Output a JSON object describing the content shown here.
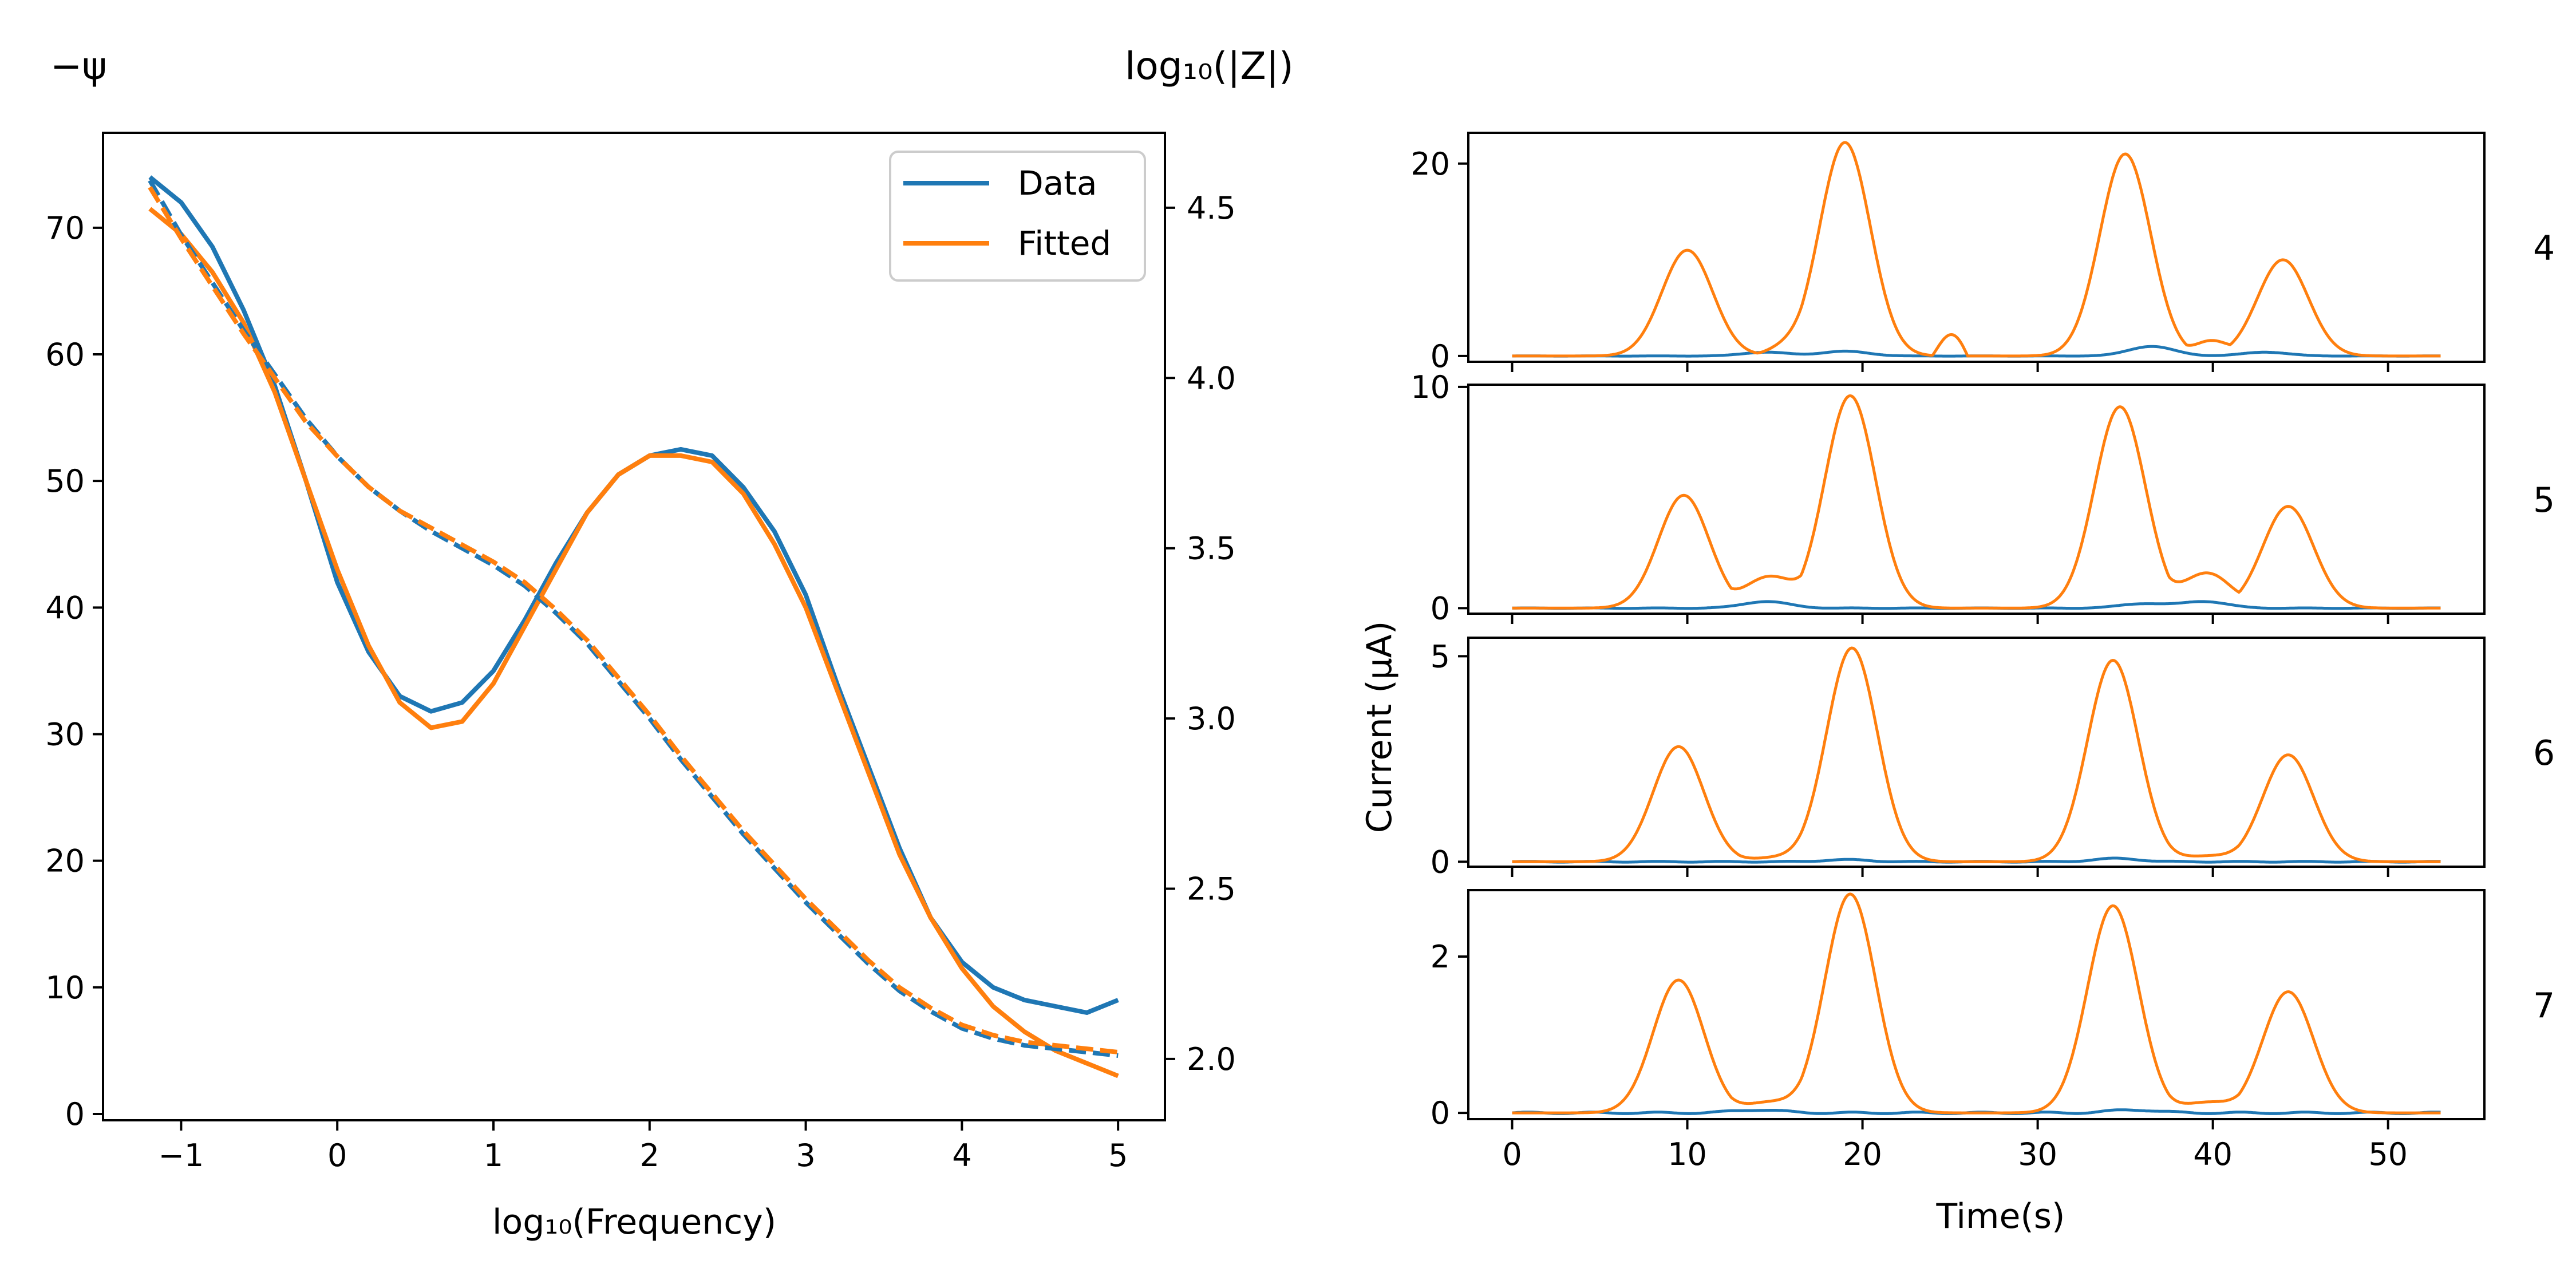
{
  "left_panel": {
    "header_left": "−ψ",
    "header_right": "log₁₀(|Z|)",
    "xlabel": "log₁₀(Frequency)",
    "legend": [
      "Data",
      "Fitted"
    ]
  },
  "right_panel": {
    "ylabel": "Current (μA)",
    "xlabel": "Time(s)",
    "row_labels": [
      "4",
      "5",
      "6",
      "7"
    ]
  },
  "colors": {
    "data": "#1f77b4",
    "fitted": "#ff7f0e"
  },
  "chart_data": [
    {
      "type": "line",
      "xlim": [
        -1.5,
        5.3
      ],
      "ylim": [
        -0.5,
        77.5
      ],
      "y2lim": [
        1.82,
        4.72
      ],
      "x_ticks": [
        -1,
        0,
        1,
        2,
        3,
        4,
        5
      ],
      "x_tick_labels": [
        "−1",
        "0",
        "1",
        "2",
        "3",
        "4",
        "5"
      ],
      "y_ticks": [
        0,
        10,
        20,
        30,
        40,
        50,
        60,
        70
      ],
      "y2_ticks": [
        2.0,
        2.5,
        3.0,
        3.5,
        4.0,
        4.5
      ],
      "y2_tick_labels": [
        "2.0",
        "2.5",
        "3.0",
        "3.5",
        "4.0",
        "4.5"
      ],
      "legend_position": "upper-right",
      "x": [
        -1.2,
        -1.0,
        -0.8,
        -0.6,
        -0.4,
        -0.2,
        0.0,
        0.2,
        0.4,
        0.6,
        0.8,
        1.0,
        1.2,
        1.4,
        1.6,
        1.8,
        2.0,
        2.2,
        2.4,
        2.6,
        2.8,
        3.0,
        3.2,
        3.4,
        3.6,
        3.8,
        4.0,
        4.2,
        4.4,
        4.6,
        4.8,
        5.0
      ],
      "series": [
        {
          "name": "Data",
          "axis": "left",
          "style": "solid",
          "values": [
            74,
            72,
            68.5,
            63.5,
            57.5,
            50,
            42,
            36.5,
            33,
            31.8,
            32.5,
            35,
            39,
            43.5,
            47.5,
            50.5,
            52,
            52.5,
            52,
            49.5,
            46,
            41,
            34,
            27.5,
            21,
            15.5,
            12,
            10,
            9,
            8.5,
            8,
            9
          ]
        },
        {
          "name": "Fitted",
          "axis": "left",
          "style": "solid",
          "values": [
            71.5,
            69.5,
            66.5,
            62.5,
            57,
            50,
            43,
            37,
            32.5,
            30.5,
            31,
            34,
            38.5,
            43,
            47.5,
            50.5,
            52,
            52,
            51.5,
            49,
            45,
            40,
            33.5,
            27,
            20.5,
            15.5,
            11.5,
            8.5,
            6.5,
            5,
            4,
            3
          ]
        },
        {
          "name": "Data",
          "axis": "right",
          "style": "dashed",
          "values": [
            4.58,
            4.42,
            4.28,
            4.14,
            4.01,
            3.88,
            3.77,
            3.68,
            3.61,
            3.55,
            3.5,
            3.45,
            3.39,
            3.31,
            3.22,
            3.11,
            3.0,
            2.88,
            2.77,
            2.66,
            2.56,
            2.46,
            2.37,
            2.28,
            2.2,
            2.14,
            2.09,
            2.06,
            2.04,
            2.03,
            2.02,
            2.01
          ]
        },
        {
          "name": "Fitted",
          "axis": "right",
          "style": "dashed",
          "values": [
            4.56,
            4.41,
            4.27,
            4.13,
            4.0,
            3.87,
            3.77,
            3.68,
            3.61,
            3.56,
            3.51,
            3.46,
            3.4,
            3.32,
            3.23,
            3.12,
            3.01,
            2.89,
            2.78,
            2.67,
            2.57,
            2.47,
            2.38,
            2.29,
            2.21,
            2.15,
            2.1,
            2.07,
            2.05,
            2.04,
            2.03,
            2.02
          ]
        }
      ]
    },
    {
      "type": "line",
      "label": "4",
      "xlim": [
        -2.5,
        55.5
      ],
      "ylim": [
        -0.6,
        23.2
      ],
      "y_ticks": [
        0,
        20
      ],
      "x_ticks": [
        0,
        10,
        20,
        30,
        40,
        50
      ],
      "x_tick_labels": [
        "0",
        "10",
        "20",
        "30",
        "40",
        "50"
      ],
      "show_x_tick_labels": false,
      "peaks": [
        [
          10,
          11
        ],
        [
          19,
          22.2
        ],
        [
          35,
          21
        ],
        [
          44,
          10
        ]
      ],
      "shoulders": [
        [
          14,
          16.5,
          0.7
        ],
        [
          24,
          26,
          2.6
        ],
        [
          38.5,
          41,
          1.6
        ]
      ],
      "blue_humps": [
        [
          14.5,
          0.4
        ],
        [
          19,
          0.5
        ],
        [
          36.5,
          1.0
        ],
        [
          43,
          0.4
        ]
      ]
    },
    {
      "type": "line",
      "label": "5",
      "xlim": [
        -2.5,
        55.5
      ],
      "ylim": [
        -0.25,
        10.1
      ],
      "y_ticks": [
        0,
        10
      ],
      "x_ticks": [
        0,
        10,
        20,
        30,
        40,
        50
      ],
      "x_tick_labels": [
        "0",
        "10",
        "20",
        "30",
        "40",
        "50"
      ],
      "show_x_tick_labels": false,
      "peaks": [
        [
          9.8,
          5.1
        ],
        [
          19.3,
          9.6
        ],
        [
          34.7,
          9.1
        ],
        [
          44.3,
          4.6
        ]
      ],
      "shoulders": [
        [
          12.5,
          16.5,
          1.6
        ],
        [
          37.5,
          41.5,
          1.8
        ]
      ],
      "blue_humps": [
        [
          14.5,
          0.3
        ],
        [
          36,
          0.2
        ],
        [
          39.5,
          0.3
        ]
      ]
    },
    {
      "type": "line",
      "label": "6",
      "xlim": [
        -2.5,
        55.5
      ],
      "ylim": [
        -0.12,
        5.45
      ],
      "y_ticks": [
        0,
        5
      ],
      "x_ticks": [
        0,
        10,
        20,
        30,
        40,
        50
      ],
      "x_tick_labels": [
        "0",
        "10",
        "20",
        "30",
        "40",
        "50"
      ],
      "show_x_tick_labels": false,
      "peaks": [
        [
          9.5,
          2.8
        ],
        [
          19.4,
          5.2
        ],
        [
          34.3,
          4.9
        ],
        [
          44.3,
          2.6
        ]
      ],
      "shoulders": [
        [
          13,
          16.5,
          0.1
        ],
        [
          37.5,
          41.5,
          0.15
        ]
      ],
      "blue_humps": [
        [
          19,
          0.05
        ],
        [
          34.5,
          0.08
        ]
      ]
    },
    {
      "type": "line",
      "label": "7",
      "xlim": [
        -2.5,
        55.5
      ],
      "ylim": [
        -0.08,
        2.85
      ],
      "y_ticks": [
        0,
        2
      ],
      "x_ticks": [
        0,
        10,
        20,
        30,
        40,
        50
      ],
      "x_tick_labels": [
        "0",
        "10",
        "20",
        "30",
        "40",
        "50"
      ],
      "show_x_tick_labels": true,
      "peaks": [
        [
          9.5,
          1.7
        ],
        [
          19.3,
          2.8
        ],
        [
          34.3,
          2.65
        ],
        [
          44.3,
          1.55
        ]
      ],
      "shoulders": [
        [
          12.5,
          16.5,
          0.15
        ],
        [
          37.5,
          41.5,
          0.15
        ]
      ],
      "blue_humps": [
        [
          14,
          0.04
        ],
        [
          35.5,
          0.04
        ]
      ]
    }
  ]
}
